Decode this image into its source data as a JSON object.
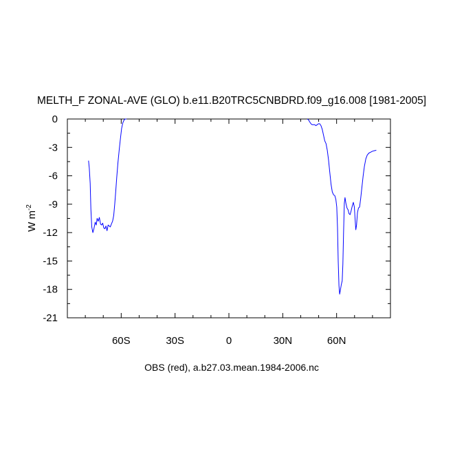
{
  "chart_data": {
    "type": "line",
    "title": "MELTH_F ZONAL-AVE (GLO) b.e11.B20TRC5CNBDRD.f09_g16.008 [1981-2005]",
    "subtitle": "OBS (red), a.b27.03.mean.1984-2006.nc",
    "ylabel_base": "W m",
    "ylabel_exp": "-2",
    "xlim": [
      -90,
      90
    ],
    "ylim": [
      -21,
      0
    ],
    "x_ticks": [
      {
        "value": -60,
        "label": "60S"
      },
      {
        "value": -30,
        "label": "30S"
      },
      {
        "value": 0,
        "label": "0"
      },
      {
        "value": 30,
        "label": "30N"
      },
      {
        "value": 60,
        "label": "60N"
      }
    ],
    "y_ticks": [
      {
        "value": 0,
        "label": "0"
      },
      {
        "value": -3,
        "label": "-3"
      },
      {
        "value": -6,
        "label": "-6"
      },
      {
        "value": -9,
        "label": "-9"
      },
      {
        "value": -12,
        "label": "-12"
      },
      {
        "value": -15,
        "label": "-15"
      },
      {
        "value": -18,
        "label": "-18"
      },
      {
        "value": -21,
        "label": "-21"
      }
    ],
    "series": [
      {
        "color": "#0000ff",
        "segments": [
          [
            [
              -78.2,
              -4.4
            ],
            [
              -77.8,
              -5.2
            ],
            [
              -77.3,
              -6.8
            ],
            [
              -76.9,
              -9.5
            ],
            [
              -76.4,
              -11.4
            ],
            [
              -75.8,
              -12.0
            ],
            [
              -75.2,
              -11.6
            ],
            [
              -74.5,
              -10.9
            ],
            [
              -73.9,
              -11.2
            ],
            [
              -73.4,
              -10.5
            ],
            [
              -72.8,
              -10.8
            ],
            [
              -72.2,
              -10.4
            ],
            [
              -71.5,
              -11.1
            ],
            [
              -70.9,
              -11.2
            ],
            [
              -70.3,
              -11.0
            ],
            [
              -69.7,
              -11.5
            ],
            [
              -69.1,
              -11.6
            ],
            [
              -68.5,
              -11.3
            ],
            [
              -67.9,
              -11.8
            ],
            [
              -67.3,
              -11.2
            ],
            [
              -66.7,
              -11.3
            ],
            [
              -66.1,
              -11.4
            ],
            [
              -65.5,
              -11.1
            ],
            [
              -64.8,
              -10.8
            ],
            [
              -64.2,
              -10.2
            ],
            [
              -63.6,
              -9.0
            ],
            [
              -63.1,
              -7.8
            ],
            [
              -62.5,
              -6.2
            ],
            [
              -61.8,
              -4.6
            ],
            [
              -61.1,
              -3.2
            ],
            [
              -60.4,
              -2.0
            ],
            [
              -59.8,
              -1.0
            ],
            [
              -59.1,
              -0.4
            ],
            [
              -58.4,
              -0.1
            ],
            [
              -57.7,
              0.0
            ],
            [
              -57.0,
              0.0
            ]
          ],
          [
            [
              43.7,
              0.0
            ],
            [
              44.4,
              -0.1
            ],
            [
              45.0,
              -0.3
            ],
            [
              45.7,
              -0.5
            ],
            [
              46.4,
              -0.6
            ],
            [
              47.1,
              -0.6
            ],
            [
              47.8,
              -0.6
            ],
            [
              48.5,
              -0.7
            ],
            [
              49.2,
              -0.6
            ],
            [
              49.9,
              -0.5
            ],
            [
              50.6,
              -0.5
            ],
            [
              51.3,
              -0.7
            ],
            [
              52.0,
              -1.1
            ],
            [
              52.7,
              -1.7
            ],
            [
              53.4,
              -2.3
            ],
            [
              54.1,
              -2.6
            ],
            [
              54.8,
              -3.3
            ],
            [
              55.5,
              -4.3
            ],
            [
              56.2,
              -5.6
            ],
            [
              56.9,
              -6.9
            ],
            [
              57.6,
              -7.7
            ],
            [
              58.3,
              -8.0
            ],
            [
              59.0,
              -8.1
            ],
            [
              59.6,
              -8.5
            ],
            [
              60.1,
              -9.3
            ],
            [
              60.5,
              -11.5
            ],
            [
              60.9,
              -15.0
            ],
            [
              61.3,
              -17.6
            ],
            [
              61.7,
              -18.5
            ],
            [
              62.1,
              -18.1
            ],
            [
              62.6,
              -17.5
            ],
            [
              63.1,
              -17.1
            ],
            [
              63.5,
              -15.3
            ],
            [
              63.9,
              -12.0
            ],
            [
              64.3,
              -8.9
            ],
            [
              64.7,
              -8.3
            ],
            [
              65.2,
              -8.9
            ],
            [
              65.8,
              -9.4
            ],
            [
              66.4,
              -9.6
            ],
            [
              66.9,
              -10.0
            ],
            [
              67.5,
              -10.1
            ],
            [
              68.1,
              -9.7
            ],
            [
              68.7,
              -9.2
            ],
            [
              69.3,
              -8.8
            ],
            [
              69.9,
              -9.3
            ],
            [
              70.3,
              -10.6
            ],
            [
              70.7,
              -11.7
            ],
            [
              71.1,
              -11.2
            ],
            [
              71.6,
              -9.9
            ],
            [
              72.2,
              -9.4
            ],
            [
              72.8,
              -9.3
            ],
            [
              73.4,
              -8.4
            ],
            [
              74.1,
              -7.2
            ],
            [
              74.8,
              -6.0
            ],
            [
              75.5,
              -5.0
            ],
            [
              76.3,
              -4.2
            ],
            [
              77.1,
              -3.8
            ],
            [
              78.0,
              -3.6
            ],
            [
              79.0,
              -3.5
            ],
            [
              80.0,
              -3.4
            ],
            [
              81.0,
              -3.35
            ],
            [
              82.1,
              -3.3
            ]
          ]
        ]
      }
    ]
  }
}
